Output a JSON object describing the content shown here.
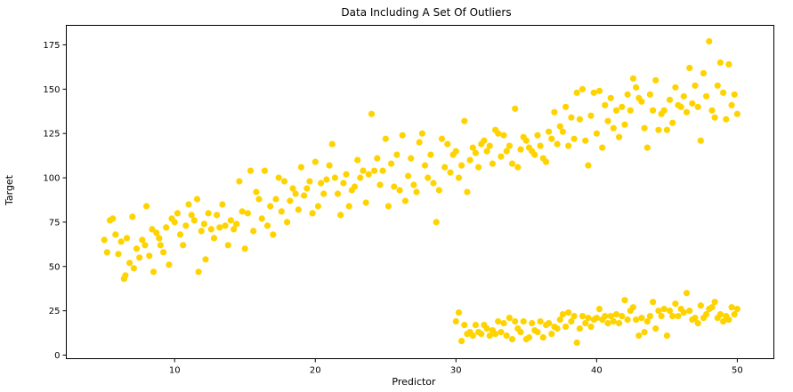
{
  "chart_data": {
    "type": "scatter",
    "title": "Data Including A Set Of Outliers",
    "xlabel": "Predictor",
    "ylabel": "Target",
    "xlim": [
      2.3,
      52.6
    ],
    "ylim": [
      -2,
      186
    ],
    "xticks": [
      10,
      20,
      30,
      40,
      50
    ],
    "yticks": [
      0,
      25,
      50,
      75,
      100,
      125,
      150,
      175
    ],
    "grid": false,
    "color": "#FFD300",
    "series": [
      {
        "points": [
          [
            5.0,
            65
          ],
          [
            5.2,
            58
          ],
          [
            5.4,
            76
          ],
          [
            5.6,
            77
          ],
          [
            5.8,
            68
          ],
          [
            6.0,
            57
          ],
          [
            6.2,
            64
          ],
          [
            6.4,
            43
          ],
          [
            6.5,
            45
          ],
          [
            6.6,
            66
          ],
          [
            6.8,
            52
          ],
          [
            7.0,
            78
          ],
          [
            7.1,
            49
          ],
          [
            7.3,
            60
          ],
          [
            7.5,
            55
          ],
          [
            7.7,
            65
          ],
          [
            7.9,
            62
          ],
          [
            8.0,
            84
          ],
          [
            8.2,
            56
          ],
          [
            8.4,
            71
          ],
          [
            8.5,
            47
          ],
          [
            8.7,
            69
          ],
          [
            8.9,
            66
          ],
          [
            9.0,
            62
          ],
          [
            9.2,
            58
          ],
          [
            9.4,
            72
          ],
          [
            9.6,
            51
          ],
          [
            9.8,
            77
          ],
          [
            10.0,
            75
          ],
          [
            10.2,
            80
          ],
          [
            10.4,
            68
          ],
          [
            10.6,
            62
          ],
          [
            10.8,
            73
          ],
          [
            11.0,
            85
          ],
          [
            11.2,
            79
          ],
          [
            11.4,
            76
          ],
          [
            11.6,
            88
          ],
          [
            11.7,
            47
          ],
          [
            11.9,
            70
          ],
          [
            12.1,
            74
          ],
          [
            12.2,
            54
          ],
          [
            12.4,
            80
          ],
          [
            12.6,
            71
          ],
          [
            12.8,
            66
          ],
          [
            13.0,
            79
          ],
          [
            13.2,
            72
          ],
          [
            13.4,
            85
          ],
          [
            13.6,
            73
          ],
          [
            13.8,
            62
          ],
          [
            14.0,
            76
          ],
          [
            14.2,
            71
          ],
          [
            14.4,
            74
          ],
          [
            14.6,
            98
          ],
          [
            14.8,
            81
          ],
          [
            15.0,
            60
          ],
          [
            15.2,
            80
          ],
          [
            15.4,
            104
          ],
          [
            15.6,
            70
          ],
          [
            15.8,
            92
          ],
          [
            16.0,
            88
          ],
          [
            16.2,
            77
          ],
          [
            16.4,
            104
          ],
          [
            16.6,
            73
          ],
          [
            16.8,
            84
          ],
          [
            17.0,
            68
          ],
          [
            17.2,
            88
          ],
          [
            17.4,
            100
          ],
          [
            17.6,
            81
          ],
          [
            17.8,
            98
          ],
          [
            18.0,
            75
          ],
          [
            18.2,
            87
          ],
          [
            18.4,
            94
          ],
          [
            18.6,
            91
          ],
          [
            18.8,
            82
          ],
          [
            19.0,
            106
          ],
          [
            19.2,
            90
          ],
          [
            19.4,
            94
          ],
          [
            19.6,
            98
          ],
          [
            19.8,
            80
          ],
          [
            20.0,
            109
          ],
          [
            20.2,
            84
          ],
          [
            20.4,
            97
          ],
          [
            20.6,
            91
          ],
          [
            20.8,
            99
          ],
          [
            21.0,
            107
          ],
          [
            21.2,
            119
          ],
          [
            21.4,
            100
          ],
          [
            21.6,
            91
          ],
          [
            21.8,
            79
          ],
          [
            22.0,
            97
          ],
          [
            22.2,
            102
          ],
          [
            22.4,
            84
          ],
          [
            22.6,
            93
          ],
          [
            22.8,
            95
          ],
          [
            23.0,
            110
          ],
          [
            23.2,
            100
          ],
          [
            23.4,
            104
          ],
          [
            23.6,
            86
          ],
          [
            23.8,
            102
          ],
          [
            24.0,
            136
          ],
          [
            24.2,
            104
          ],
          [
            24.4,
            111
          ],
          [
            24.6,
            96
          ],
          [
            24.8,
            104
          ],
          [
            25.0,
            122
          ],
          [
            25.2,
            84
          ],
          [
            25.4,
            108
          ],
          [
            25.6,
            95
          ],
          [
            25.8,
            113
          ],
          [
            26.0,
            93
          ],
          [
            26.2,
            124
          ],
          [
            26.4,
            87
          ],
          [
            26.6,
            101
          ],
          [
            26.8,
            111
          ],
          [
            27.0,
            96
          ],
          [
            27.2,
            92
          ],
          [
            27.4,
            120
          ],
          [
            27.6,
            125
          ],
          [
            27.8,
            107
          ],
          [
            28.0,
            100
          ],
          [
            28.2,
            113
          ],
          [
            28.4,
            97
          ],
          [
            28.6,
            75
          ],
          [
            28.8,
            93
          ],
          [
            29.0,
            122
          ],
          [
            29.2,
            106
          ],
          [
            29.4,
            119
          ],
          [
            29.6,
            103
          ],
          [
            29.8,
            113
          ],
          [
            30.0,
            115
          ],
          [
            30.2,
            100
          ],
          [
            30.4,
            107
          ],
          [
            30.6,
            132
          ],
          [
            30.8,
            92
          ],
          [
            31.0,
            110
          ],
          [
            31.2,
            117
          ],
          [
            31.4,
            114
          ],
          [
            31.6,
            106
          ],
          [
            31.8,
            119
          ],
          [
            32.0,
            121
          ],
          [
            32.2,
            115
          ],
          [
            32.4,
            118
          ],
          [
            32.6,
            108
          ],
          [
            32.8,
            127
          ],
          [
            33.0,
            125
          ],
          [
            33.2,
            112
          ],
          [
            33.4,
            124
          ],
          [
            33.6,
            115
          ],
          [
            33.8,
            118
          ],
          [
            34.0,
            108
          ],
          [
            34.2,
            139
          ],
          [
            34.4,
            106
          ],
          [
            34.6,
            116
          ],
          [
            34.8,
            123
          ],
          [
            35.0,
            121
          ],
          [
            35.2,
            117
          ],
          [
            35.4,
            115
          ],
          [
            35.6,
            113
          ],
          [
            35.8,
            124
          ],
          [
            36.0,
            118
          ],
          [
            36.2,
            111
          ],
          [
            36.4,
            109
          ],
          [
            36.6,
            126
          ],
          [
            36.8,
            122
          ],
          [
            37.0,
            137
          ],
          [
            37.2,
            119
          ],
          [
            37.4,
            129
          ],
          [
            37.6,
            126
          ],
          [
            37.8,
            140
          ],
          [
            38.0,
            118
          ],
          [
            38.2,
            134
          ],
          [
            38.4,
            122
          ],
          [
            38.6,
            148
          ],
          [
            38.8,
            133
          ],
          [
            39.0,
            150
          ],
          [
            39.2,
            121
          ],
          [
            39.4,
            107
          ],
          [
            39.6,
            135
          ],
          [
            39.8,
            148
          ],
          [
            40.0,
            125
          ],
          [
            40.2,
            149
          ],
          [
            40.4,
            117
          ],
          [
            40.6,
            141
          ],
          [
            40.8,
            132
          ],
          [
            41.0,
            145
          ],
          [
            41.2,
            128
          ],
          [
            41.4,
            138
          ],
          [
            41.6,
            123
          ],
          [
            41.8,
            140
          ],
          [
            42.0,
            130
          ],
          [
            42.2,
            147
          ],
          [
            42.4,
            138
          ],
          [
            42.6,
            156
          ],
          [
            42.8,
            151
          ],
          [
            43.0,
            145
          ],
          [
            43.2,
            143
          ],
          [
            43.4,
            128
          ],
          [
            43.6,
            117
          ],
          [
            43.8,
            147
          ],
          [
            44.0,
            138
          ],
          [
            44.2,
            155
          ],
          [
            44.4,
            127
          ],
          [
            44.6,
            136
          ],
          [
            44.8,
            138
          ],
          [
            45.0,
            127
          ],
          [
            45.2,
            144
          ],
          [
            45.4,
            131
          ],
          [
            45.6,
            151
          ],
          [
            45.8,
            141
          ],
          [
            46.0,
            140
          ],
          [
            46.2,
            146
          ],
          [
            46.4,
            137
          ],
          [
            46.6,
            162
          ],
          [
            46.8,
            142
          ],
          [
            47.0,
            152
          ],
          [
            47.2,
            140
          ],
          [
            47.4,
            121
          ],
          [
            47.6,
            159
          ],
          [
            47.8,
            146
          ],
          [
            48.0,
            177
          ],
          [
            48.2,
            138
          ],
          [
            48.4,
            134
          ],
          [
            48.6,
            152
          ],
          [
            48.8,
            165
          ],
          [
            49.0,
            148
          ],
          [
            49.2,
            133
          ],
          [
            49.4,
            164
          ],
          [
            49.6,
            141
          ],
          [
            49.8,
            147
          ],
          [
            50.0,
            136
          ],
          [
            30.0,
            19
          ],
          [
            30.2,
            24
          ],
          [
            30.4,
            8
          ],
          [
            30.6,
            17
          ],
          [
            30.8,
            12
          ],
          [
            31.0,
            13
          ],
          [
            31.2,
            11
          ],
          [
            31.4,
            17
          ],
          [
            31.6,
            13
          ],
          [
            31.8,
            12
          ],
          [
            32.0,
            17
          ],
          [
            32.2,
            15
          ],
          [
            32.4,
            11
          ],
          [
            32.6,
            14
          ],
          [
            32.8,
            12
          ],
          [
            33.0,
            19
          ],
          [
            33.2,
            13
          ],
          [
            33.4,
            18
          ],
          [
            33.6,
            11
          ],
          [
            33.8,
            21
          ],
          [
            34.0,
            9
          ],
          [
            34.2,
            19
          ],
          [
            34.4,
            15
          ],
          [
            34.6,
            13
          ],
          [
            34.8,
            19
          ],
          [
            35.0,
            9
          ],
          [
            35.2,
            10
          ],
          [
            35.4,
            18
          ],
          [
            35.6,
            14
          ],
          [
            35.8,
            13
          ],
          [
            36.0,
            19
          ],
          [
            36.2,
            10
          ],
          [
            36.4,
            17
          ],
          [
            36.6,
            18
          ],
          [
            36.8,
            12
          ],
          [
            37.0,
            16
          ],
          [
            37.2,
            15
          ],
          [
            37.4,
            20
          ],
          [
            37.6,
            23
          ],
          [
            37.8,
            16
          ],
          [
            38.0,
            24
          ],
          [
            38.2,
            19
          ],
          [
            38.4,
            22
          ],
          [
            38.6,
            7
          ],
          [
            38.8,
            15
          ],
          [
            39.0,
            22
          ],
          [
            39.2,
            18
          ],
          [
            39.4,
            21
          ],
          [
            39.6,
            16
          ],
          [
            39.8,
            20
          ],
          [
            40.0,
            21
          ],
          [
            40.2,
            26
          ],
          [
            40.4,
            20
          ],
          [
            40.6,
            22
          ],
          [
            40.8,
            18
          ],
          [
            41.0,
            22
          ],
          [
            41.2,
            19
          ],
          [
            41.4,
            23
          ],
          [
            41.6,
            18
          ],
          [
            41.8,
            22
          ],
          [
            42.0,
            31
          ],
          [
            42.2,
            20
          ],
          [
            42.4,
            25
          ],
          [
            42.6,
            27
          ],
          [
            42.8,
            20
          ],
          [
            43.0,
            11
          ],
          [
            43.2,
            21
          ],
          [
            43.4,
            13
          ],
          [
            43.6,
            19
          ],
          [
            43.8,
            22
          ],
          [
            44.0,
            30
          ],
          [
            44.2,
            15
          ],
          [
            44.4,
            25
          ],
          [
            44.6,
            22
          ],
          [
            44.8,
            26
          ],
          [
            45.0,
            11
          ],
          [
            45.2,
            25
          ],
          [
            45.4,
            22
          ],
          [
            45.6,
            29
          ],
          [
            45.8,
            22
          ],
          [
            46.0,
            26
          ],
          [
            46.2,
            24
          ],
          [
            46.4,
            35
          ],
          [
            46.6,
            25
          ],
          [
            46.8,
            20
          ],
          [
            47.0,
            21
          ],
          [
            47.2,
            18
          ],
          [
            47.4,
            28
          ],
          [
            47.6,
            21
          ],
          [
            47.8,
            23
          ],
          [
            48.0,
            26
          ],
          [
            48.2,
            27
          ],
          [
            48.4,
            30
          ],
          [
            48.6,
            21
          ],
          [
            48.8,
            23
          ],
          [
            49.0,
            19
          ],
          [
            49.2,
            22
          ],
          [
            49.4,
            20
          ],
          [
            49.6,
            27
          ],
          [
            49.8,
            23
          ],
          [
            50.0,
            26
          ]
        ]
      }
    ]
  }
}
